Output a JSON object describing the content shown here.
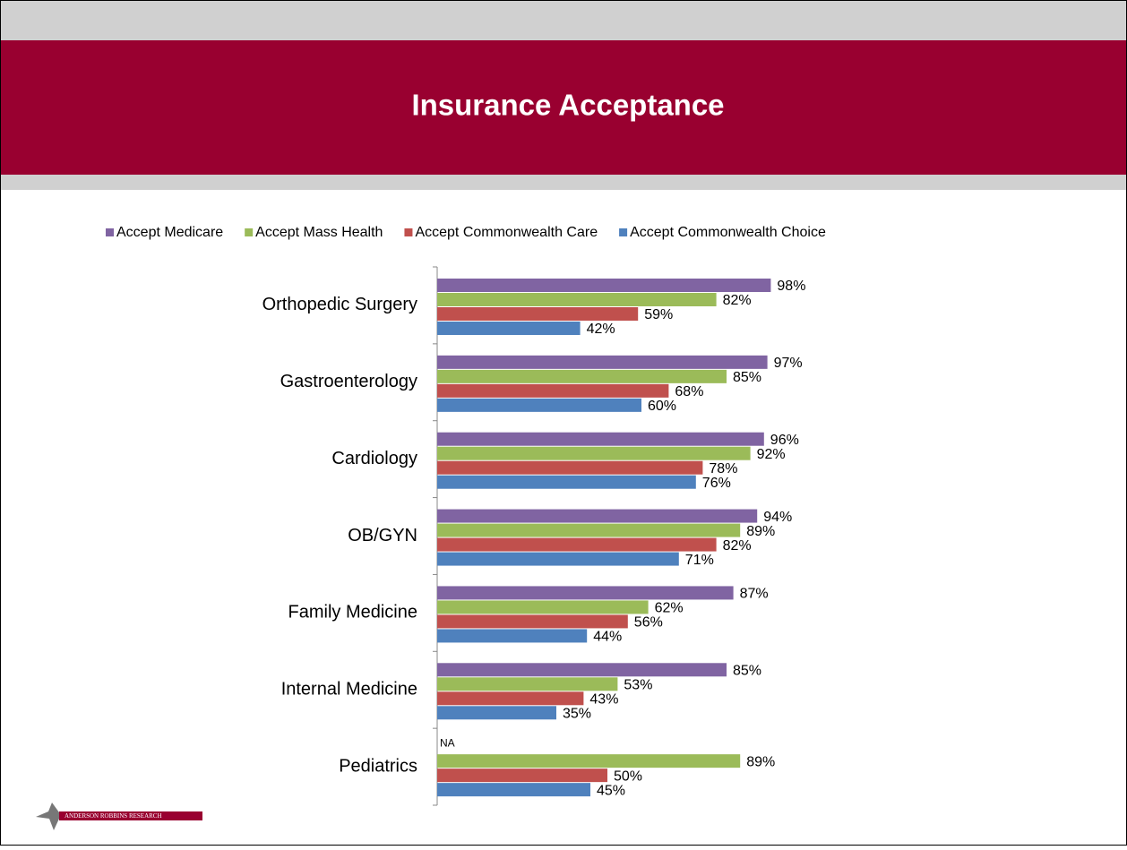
{
  "chart_data": {
    "type": "bar",
    "orientation": "horizontal",
    "title": "Insurance Acceptance",
    "categories": [
      "Orthopedic Surgery",
      "Gastroenterology",
      "Cardiology",
      "OB/GYN",
      "Family Medicine",
      "Internal Medicine",
      "Pediatrics"
    ],
    "series": [
      {
        "name": "Accept Medicare",
        "color": "#8064a2",
        "values": [
          98,
          97,
          96,
          94,
          87,
          85,
          null
        ],
        "value_labels": [
          "98%",
          "97%",
          "96%",
          "94%",
          "87%",
          "85%",
          "NA"
        ]
      },
      {
        "name": "Accept Mass Health",
        "color": "#9bbb59",
        "values": [
          82,
          85,
          92,
          89,
          62,
          53,
          89
        ],
        "value_labels": [
          "82%",
          "85%",
          "92%",
          "89%",
          "62%",
          "53%",
          "89%"
        ]
      },
      {
        "name": "Accept Commonwealth Care",
        "color": "#c0504d",
        "values": [
          59,
          68,
          78,
          82,
          56,
          43,
          50
        ],
        "value_labels": [
          "59%",
          "68%",
          "78%",
          "82%",
          "56%",
          "43%",
          "50%"
        ]
      },
      {
        "name": "Accept Commonwealth Choice",
        "color": "#4f81bd",
        "values": [
          42,
          60,
          76,
          71,
          44,
          35,
          45
        ],
        "value_labels": [
          "42%",
          "60%",
          "76%",
          "71%",
          "44%",
          "35%",
          "45%"
        ]
      }
    ],
    "xlim": [
      0,
      100
    ],
    "legend": "top"
  },
  "logo": "ANDERSON ROBBINS RESEARCH"
}
